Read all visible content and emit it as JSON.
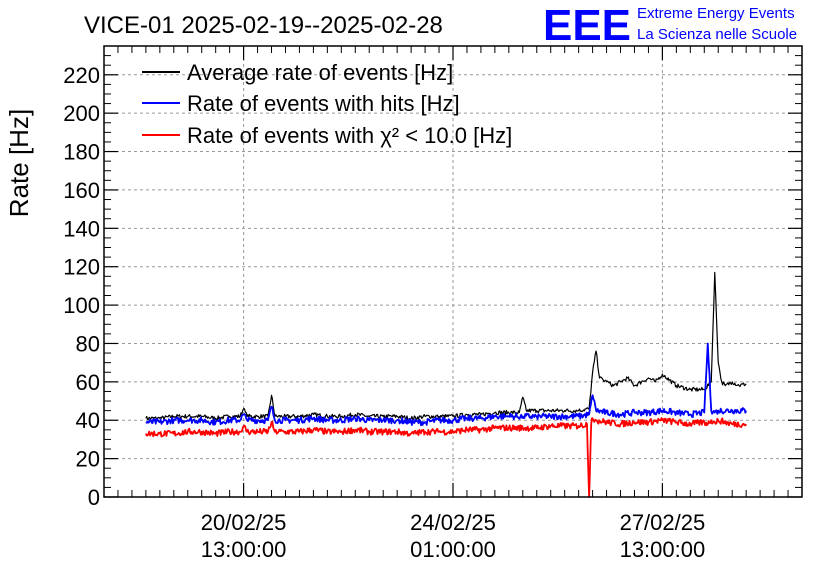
{
  "chart_data": {
    "type": "line",
    "title": "VICE-01 2025-02-19--2025-02-28",
    "xlabel": "",
    "ylabel": "Rate [Hz]",
    "ylim": [
      0,
      235
    ],
    "yticks": [
      0,
      20,
      40,
      60,
      80,
      100,
      120,
      140,
      160,
      180,
      200,
      220
    ],
    "xlim": [
      0,
      10
    ],
    "xticks": [
      {
        "x": 2.0,
        "date": "20/02/25",
        "time": "13:00:00"
      },
      {
        "x": 5.0,
        "date": "24/02/25",
        "time": "01:00:00"
      },
      {
        "x": 8.0,
        "date": "27/02/25",
        "time": "13:00:00"
      }
    ],
    "grid": true,
    "legend_position": "top-left",
    "series": [
      {
        "name": "Average rate of events [Hz]",
        "color": "#000000",
        "x": [
          0.6,
          0.8,
          1.0,
          1.2,
          1.4,
          1.6,
          1.8,
          1.95,
          2.0,
          2.05,
          2.2,
          2.35,
          2.4,
          2.45,
          2.6,
          2.8,
          3.0,
          3.2,
          3.4,
          3.6,
          3.8,
          4.0,
          4.2,
          4.4,
          4.6,
          4.8,
          5.0,
          5.2,
          5.4,
          5.6,
          5.8,
          5.95,
          6.0,
          6.05,
          6.2,
          6.4,
          6.6,
          6.8,
          6.95,
          7.0,
          7.05,
          7.1,
          7.2,
          7.3,
          7.4,
          7.5,
          7.6,
          7.7,
          7.8,
          7.9,
          8.0,
          8.2,
          8.4,
          8.6,
          8.7,
          8.75,
          8.8,
          8.85,
          8.9,
          9.0,
          9.1,
          9.2
        ],
        "values": [
          41,
          41,
          42,
          42,
          42,
          41,
          42,
          42,
          46,
          42,
          42,
          42,
          53,
          42,
          42,
          42,
          43,
          42,
          42,
          43,
          42,
          42,
          42,
          41,
          42,
          42,
          42,
          43,
          43,
          44,
          44,
          44,
          52,
          45,
          45,
          45,
          45,
          45,
          46,
          65,
          76,
          62,
          60,
          58,
          60,
          62,
          58,
          60,
          62,
          60,
          64,
          58,
          56,
          56,
          60,
          117,
          70,
          60,
          58,
          60,
          58,
          59
        ]
      },
      {
        "name": "Rate of events with hits [Hz]",
        "color": "#0000ff",
        "x": [
          0.6,
          0.8,
          1.0,
          1.2,
          1.4,
          1.6,
          1.8,
          1.95,
          2.0,
          2.05,
          2.2,
          2.35,
          2.4,
          2.45,
          2.6,
          2.8,
          3.0,
          3.2,
          3.4,
          3.6,
          3.8,
          4.0,
          4.2,
          4.4,
          4.6,
          4.8,
          5.0,
          5.2,
          5.4,
          5.6,
          5.8,
          6.0,
          6.2,
          6.4,
          6.6,
          6.8,
          6.95,
          7.0,
          7.05,
          7.2,
          7.4,
          7.6,
          7.8,
          8.0,
          8.2,
          8.4,
          8.6,
          8.65,
          8.7,
          8.75,
          8.8,
          9.0,
          9.2
        ],
        "values": [
          39,
          39,
          40,
          40,
          40,
          39,
          40,
          40,
          43,
          40,
          40,
          40,
          47,
          40,
          40,
          40,
          41,
          40,
          40,
          41,
          40,
          40,
          40,
          39,
          39,
          40,
          40,
          41,
          41,
          42,
          42,
          42,
          42,
          42,
          42,
          42,
          43,
          53,
          45,
          44,
          43,
          44,
          44,
          45,
          44,
          43,
          44,
          80,
          45,
          44,
          45,
          45,
          45
        ]
      },
      {
        "name": "Rate of events with χ² < 10.0 [Hz]",
        "color": "#ff0000",
        "x": [
          0.6,
          0.8,
          1.0,
          1.2,
          1.4,
          1.6,
          1.8,
          1.95,
          2.0,
          2.05,
          2.2,
          2.35,
          2.4,
          2.45,
          2.6,
          2.8,
          3.0,
          3.2,
          3.4,
          3.6,
          3.8,
          4.0,
          4.2,
          4.4,
          4.6,
          4.8,
          5.0,
          5.2,
          5.4,
          5.6,
          5.8,
          6.0,
          6.2,
          6.4,
          6.6,
          6.8,
          6.92,
          6.95,
          6.98,
          7.0,
          7.05,
          7.2,
          7.4,
          7.6,
          7.8,
          8.0,
          8.2,
          8.4,
          8.6,
          8.65,
          8.7,
          8.75,
          8.8,
          9.0,
          9.2
        ],
        "values": [
          33,
          33,
          33,
          34,
          34,
          33,
          34,
          34,
          37,
          34,
          34,
          34,
          39,
          34,
          34,
          34,
          35,
          34,
          34,
          35,
          34,
          34,
          34,
          33,
          34,
          34,
          34,
          35,
          35,
          36,
          36,
          36,
          36,
          37,
          37,
          37,
          38,
          0,
          38,
          41,
          40,
          39,
          38,
          39,
          39,
          40,
          39,
          38,
          39,
          38,
          40,
          39,
          40,
          38,
          38
        ]
      }
    ],
    "logo": {
      "mark": "EEE",
      "line1": "Extreme Energy Events",
      "line2": "La Scienza nelle Scuole",
      "color": "#0000ff"
    }
  }
}
